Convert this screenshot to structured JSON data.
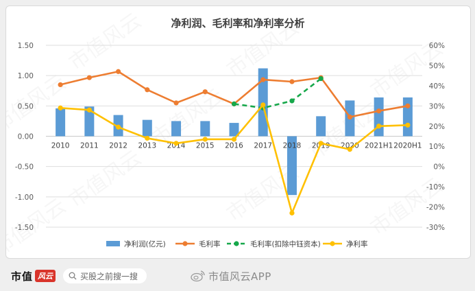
{
  "chart_data": {
    "type": "bar",
    "title": "净利润、毛利率和净利率分析",
    "categories": [
      "2010",
      "2011",
      "2012",
      "2013",
      "2014",
      "2015",
      "2016",
      "2017",
      "2018",
      "2019",
      "2020",
      "2021H1",
      "2020H1"
    ],
    "y_left": {
      "min": -1.5,
      "max": 1.5,
      "ticks": [
        "1.50",
        "1.00",
        "0.50",
        "0.00",
        "-0.50",
        "-1.00",
        "-1.50"
      ]
    },
    "y_right": {
      "min": -30,
      "max": 60,
      "ticks": [
        "60%",
        "50%",
        "40%",
        "30%",
        "20%",
        "10%",
        "0%",
        "-10%",
        "-20%",
        "-30%"
      ]
    },
    "gridlines": true,
    "legend_position": "bottom",
    "series": [
      {
        "name": "净利润(亿元)",
        "kind": "bar",
        "axis": "left",
        "color": "#5b9bd5",
        "values": [
          0.46,
          0.49,
          0.35,
          0.27,
          0.25,
          0.25,
          0.22,
          1.12,
          -0.97,
          0.33,
          0.59,
          0.64,
          0.64
        ]
      },
      {
        "name": "毛利率",
        "kind": "line",
        "axis": "right",
        "color": "#ed7d31",
        "values": [
          40.5,
          44,
          47,
          38,
          31.5,
          37,
          31,
          43,
          42,
          44,
          24.5,
          27.5,
          30
        ]
      },
      {
        "name": "毛利率(扣除中钰资本)",
        "kind": "line-dashed",
        "axis": "right",
        "color": "#17a84b",
        "values": [
          null,
          null,
          null,
          null,
          null,
          null,
          31,
          29,
          32.5,
          43.5,
          null,
          null,
          null
        ]
      },
      {
        "name": "净利率",
        "kind": "line",
        "axis": "right",
        "color": "#ffc000",
        "values": [
          29,
          28,
          19.5,
          14,
          11.5,
          13.5,
          13.5,
          30.5,
          -23,
          11.5,
          8.5,
          20,
          20.5
        ]
      }
    ]
  },
  "watermark": "市值风云",
  "footer": {
    "brand_text": "市值",
    "brand_badge": "风云",
    "search_placeholder": "买股之前搜一搜",
    "weibo_text": "市值风云APP"
  }
}
